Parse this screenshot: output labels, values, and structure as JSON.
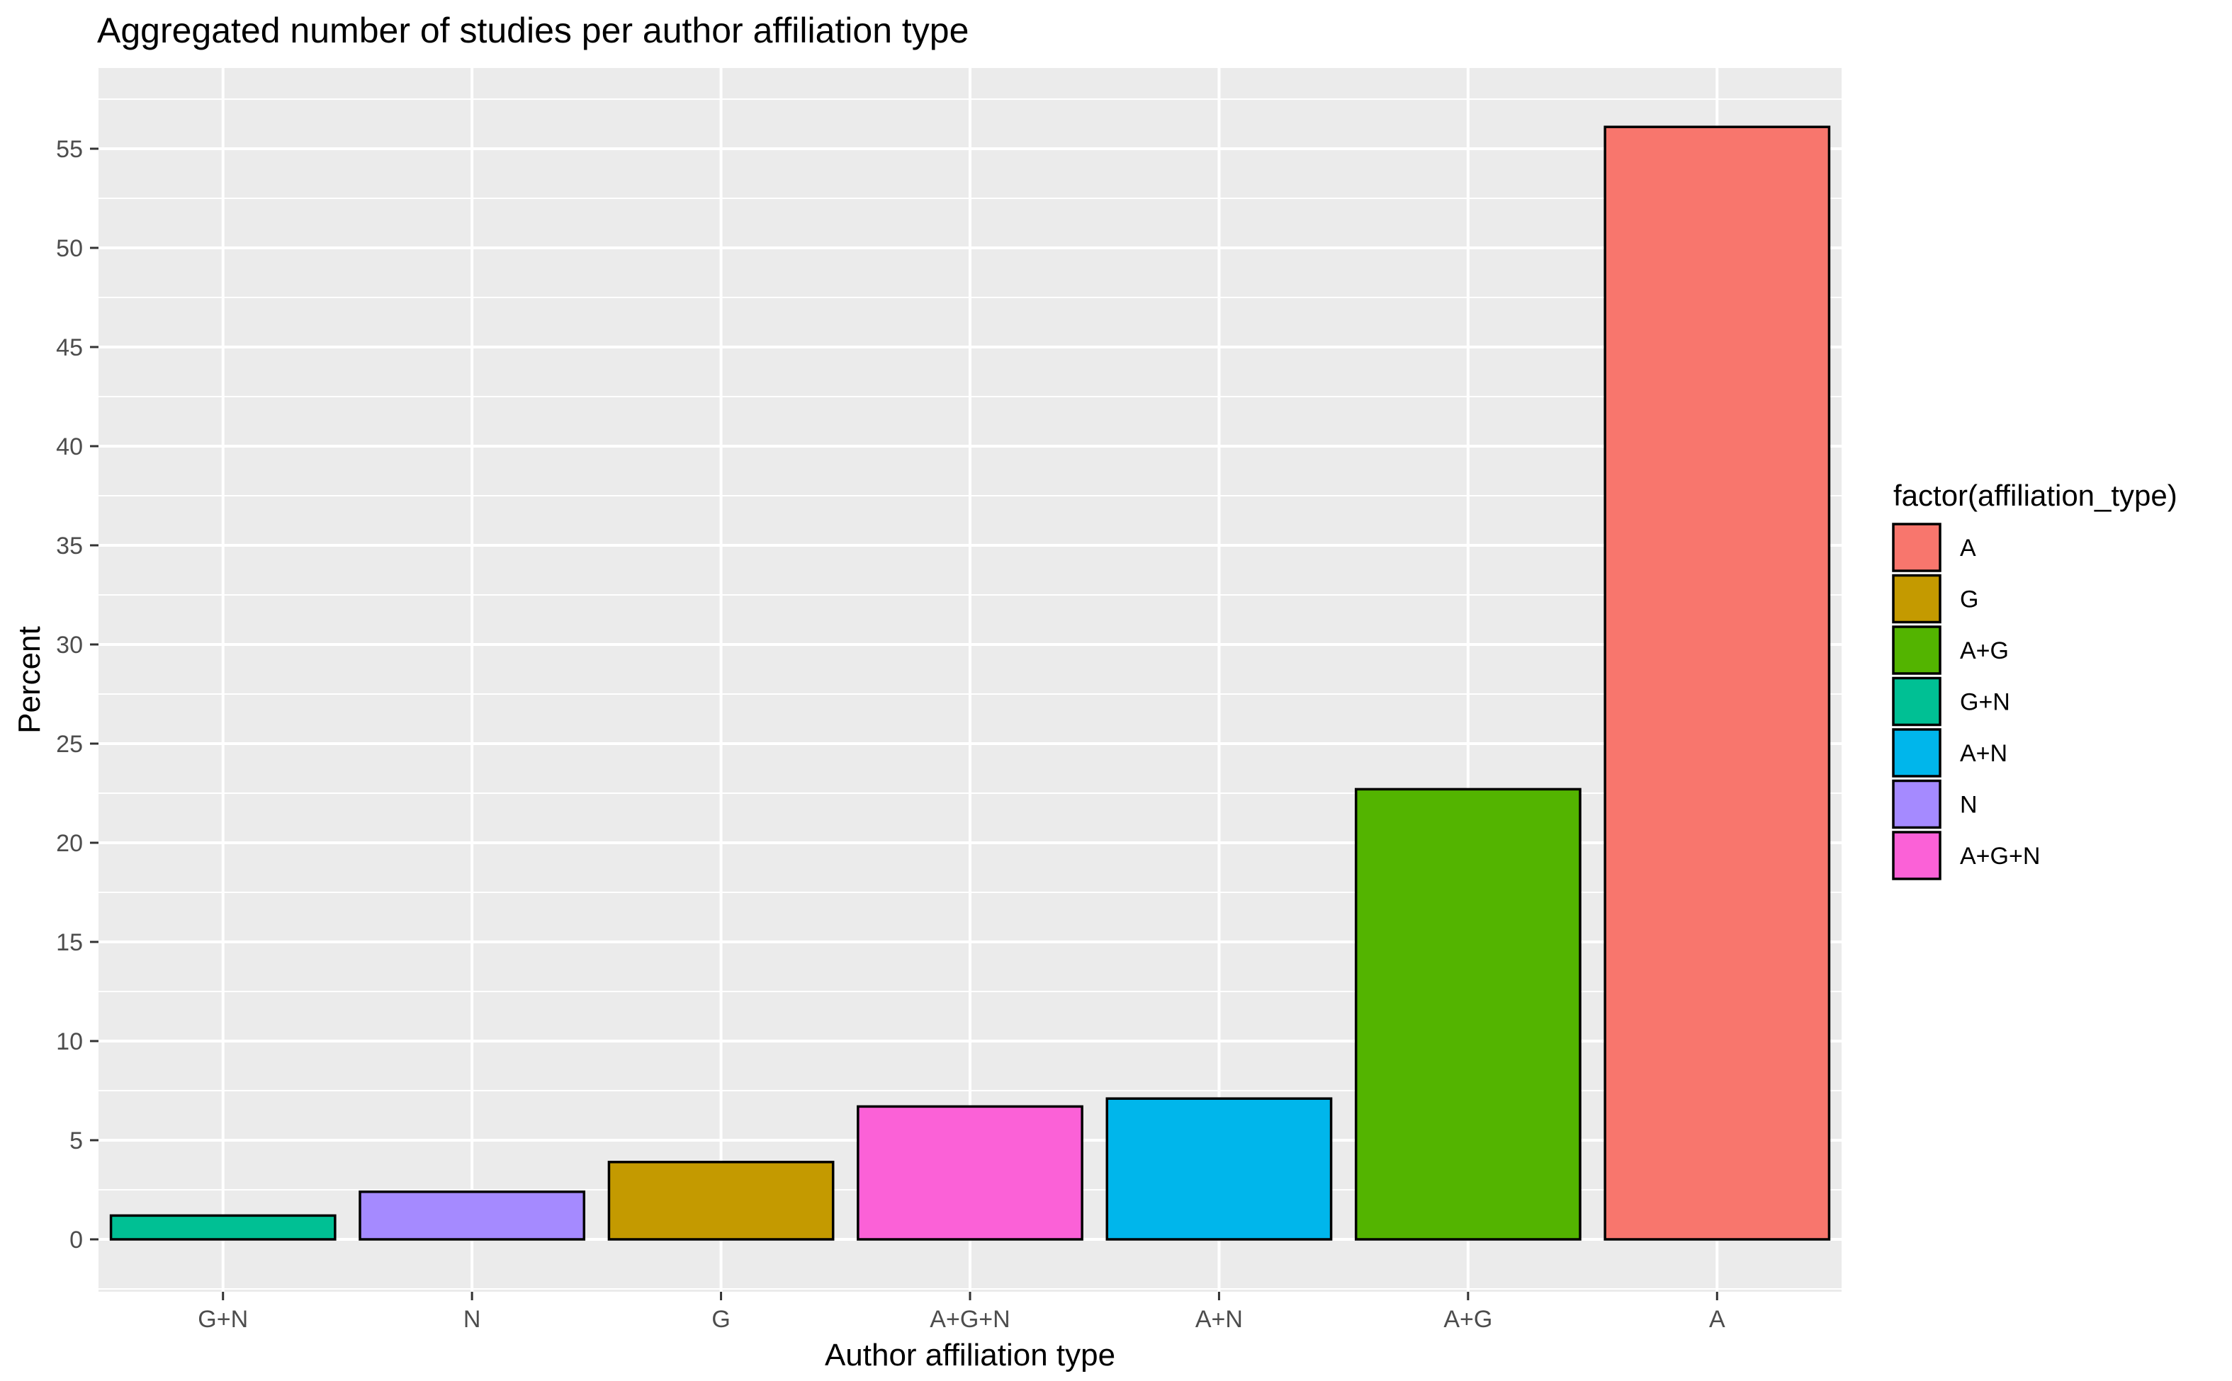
{
  "chart_data": {
    "type": "bar",
    "title": "Aggregated number of studies per author affiliation type",
    "xlabel": "Author affiliation type",
    "ylabel": "Percent",
    "categories": [
      "G+N",
      "N",
      "G",
      "A+G+N",
      "A+N",
      "A+G",
      "A"
    ],
    "values": [
      1.2,
      2.4,
      3.9,
      6.7,
      7.1,
      22.7,
      56.1
    ],
    "colors": [
      "#00C094",
      "#A58AFF",
      "#C49A00",
      "#FB61D7",
      "#00B6EB",
      "#53B400",
      "#F8766D"
    ],
    "ylim": [
      -3,
      59
    ],
    "yticks": [
      0,
      5,
      10,
      15,
      20,
      25,
      30,
      35,
      40,
      45,
      50,
      55
    ],
    "grid": true,
    "panel_background": "#EBEBEB",
    "legend": {
      "title": "factor(affiliation_type)",
      "placement": "right",
      "items": [
        {
          "label": "A",
          "color": "#F8766D"
        },
        {
          "label": "G",
          "color": "#C49A00"
        },
        {
          "label": "A+G",
          "color": "#53B400"
        },
        {
          "label": "G+N",
          "color": "#00C094"
        },
        {
          "label": "A+N",
          "color": "#00B6EB"
        },
        {
          "label": "N",
          "color": "#A58AFF"
        },
        {
          "label": "A+G+N",
          "color": "#FB61D7"
        }
      ]
    }
  }
}
